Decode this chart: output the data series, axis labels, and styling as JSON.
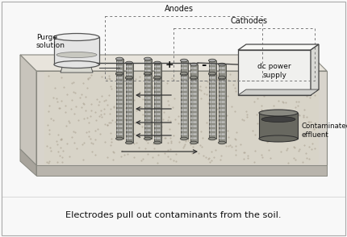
{
  "title": "Electrodes pull out contaminants from the soil.",
  "label_anodes": "Anodes",
  "label_cathodes": "Cathodes",
  "label_purge": "Purge\nsolution",
  "label_dc": "dc power\nsupply",
  "label_contaminated": "Contaminated\neffluent",
  "label_plus": "+",
  "label_minus": "-",
  "figure_bg": "#f8f8f8",
  "platform_top_fc": "#e8e4dc",
  "platform_front_fc": "#d8d4cc",
  "platform_left_fc": "#c8c4bc",
  "platform_base_fc": "#b8b4ac",
  "soil_fc": "#d8d4c8",
  "soil_dot": "#aaa090",
  "electrode_fc": "#888880",
  "electrode_ec": "#555550",
  "purge_fc": "#e0e0e0",
  "purge_ec": "#555555",
  "dc_fc": "#f0f0ee",
  "dc_ec": "#444444",
  "effluent_fc": "#707070",
  "effluent_ec": "#333333",
  "wire_color": "#444444",
  "arrow_color": "#333333",
  "text_color": "#111111",
  "dashed_color": "#777777",
  "border_color": "#aaaaaa"
}
